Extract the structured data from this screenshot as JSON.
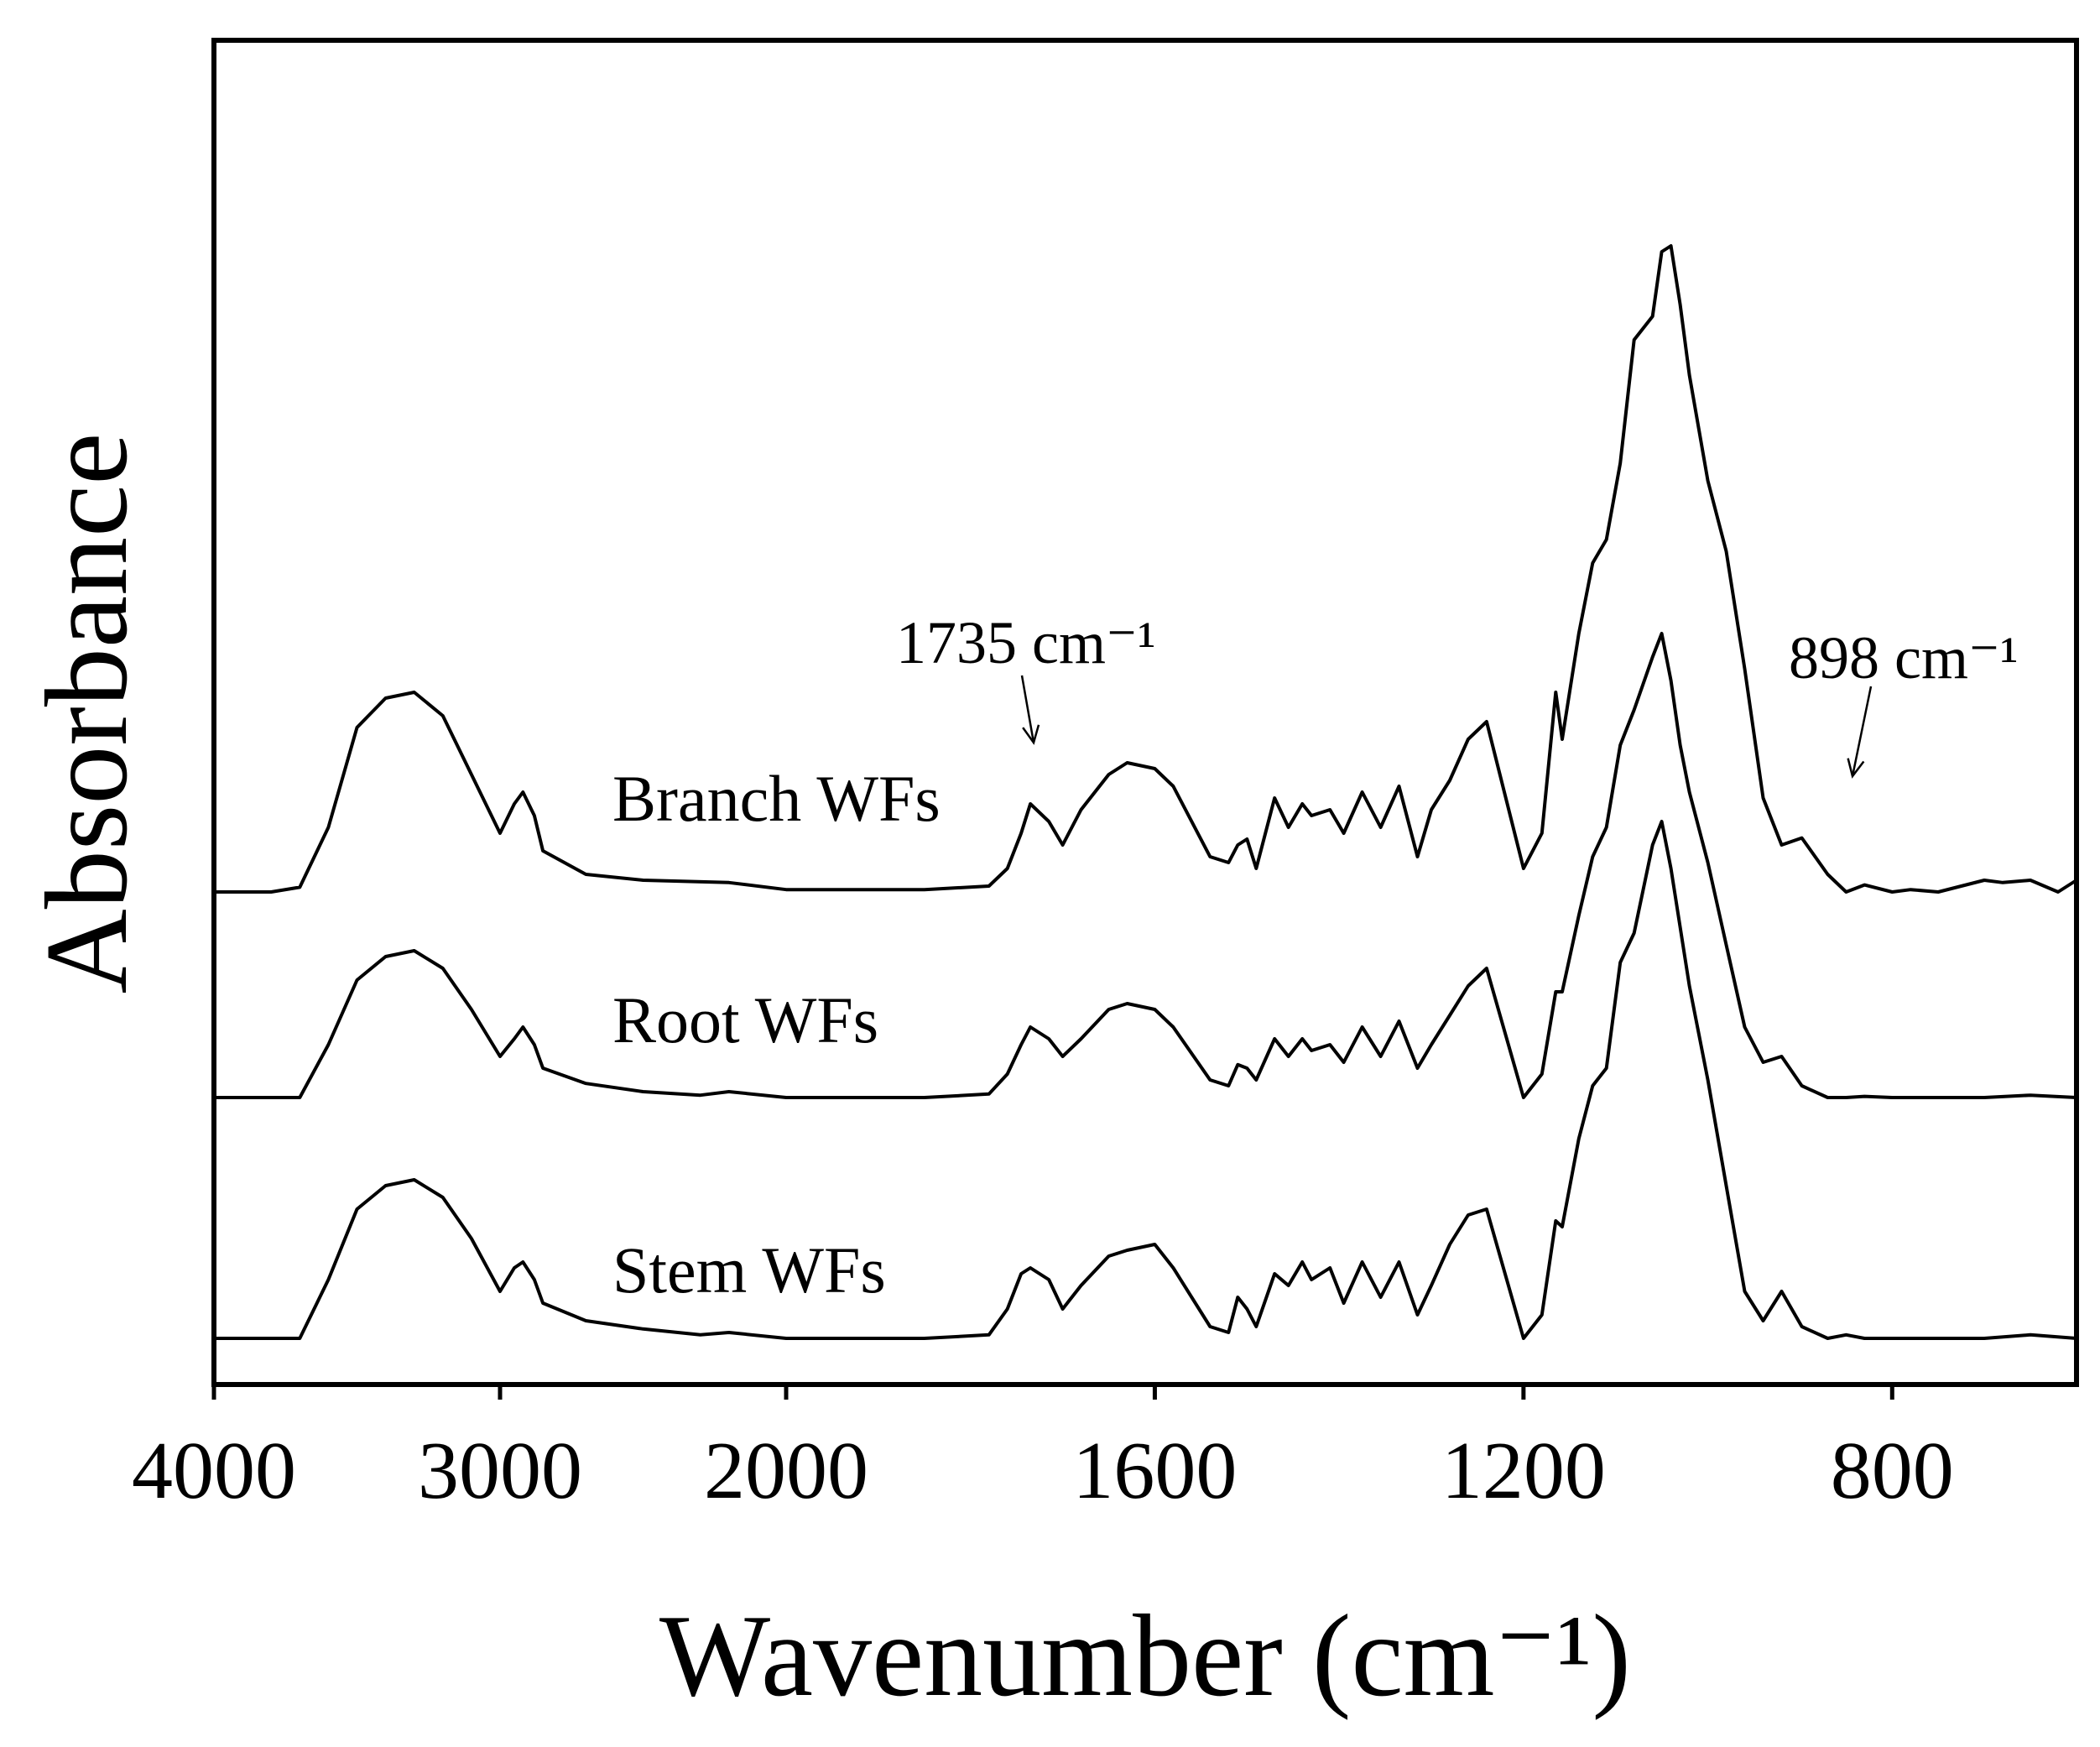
{
  "chart_data": {
    "type": "line",
    "xlabel": "Wavenumber (cm⁻¹)",
    "ylabel": "Absorbance",
    "x_axis": {
      "reversed": true,
      "broken_scale": true,
      "segments": [
        {
          "from": 4000,
          "to": 2000
        },
        {
          "from": 2000,
          "to": 600
        }
      ],
      "ticks": [
        4000,
        3000,
        2000,
        1600,
        1200,
        800
      ],
      "tick_labels": [
        "4000",
        "3000",
        "2000",
        "1600",
        "1200",
        "800"
      ]
    },
    "y_axis": {
      "ticks_shown": false
    },
    "ylim": [
      0,
      1.0
    ],
    "grid": false,
    "series": [
      {
        "name": "Branch WFs",
        "label": "Branch WFs",
        "offset": 0.38,
        "x": [
          4000,
          3800,
          3700,
          3600,
          3500,
          3400,
          3300,
          3200,
          3100,
          3000,
          2950,
          2920,
          2880,
          2850,
          2700,
          2500,
          2200,
          2000,
          1850,
          1780,
          1760,
          1745,
          1735,
          1715,
          1700,
          1680,
          1650,
          1630,
          1600,
          1580,
          1540,
          1520,
          1510,
          1500,
          1490,
          1470,
          1455,
          1440,
          1430,
          1410,
          1395,
          1375,
          1355,
          1335,
          1315,
          1300,
          1280,
          1260,
          1240,
          1200,
          1180,
          1165,
          1158,
          1140,
          1125,
          1110,
          1095,
          1080,
          1060,
          1050,
          1040,
          1030,
          1020,
          1000,
          980,
          960,
          940,
          920,
          898,
          870,
          850,
          830,
          800,
          780,
          750,
          700,
          680,
          650,
          620,
          600
        ],
        "y": [
          0,
          0.0,
          0.004,
          0.055,
          0.14,
          0.165,
          0.17,
          0.15,
          0.1,
          0.05,
          0.075,
          0.085,
          0.065,
          0.035,
          0.015,
          0.01,
          0.008,
          0.002,
          0.002,
          0.005,
          0.02,
          0.05,
          0.075,
          0.06,
          0.04,
          0.07,
          0.1,
          0.11,
          0.105,
          0.09,
          0.03,
          0.025,
          0.04,
          0.045,
          0.02,
          0.08,
          0.055,
          0.075,
          0.065,
          0.07,
          0.05,
          0.085,
          0.055,
          0.09,
          0.03,
          0.07,
          0.095,
          0.13,
          0.145,
          0.02,
          0.05,
          0.17,
          0.13,
          0.22,
          0.28,
          0.3,
          0.365,
          0.47,
          0.49,
          0.545,
          0.55,
          0.5,
          0.44,
          0.35,
          0.29,
          0.19,
          0.08,
          0.04,
          0.046,
          0.015,
          0.0,
          0.006,
          0.0,
          0.002,
          0.0,
          0.01,
          0.008,
          0.01,
          0.0,
          0.01
        ]
      },
      {
        "name": "Root WFs",
        "label": "Root WFs",
        "offset": 0.205,
        "x": [
          4000,
          3800,
          3700,
          3600,
          3500,
          3400,
          3300,
          3200,
          3100,
          3000,
          2950,
          2920,
          2880,
          2850,
          2700,
          2500,
          2300,
          2200,
          2000,
          1850,
          1780,
          1760,
          1745,
          1735,
          1715,
          1700,
          1680,
          1650,
          1630,
          1600,
          1580,
          1540,
          1520,
          1510,
          1500,
          1490,
          1470,
          1455,
          1440,
          1430,
          1410,
          1395,
          1375,
          1355,
          1335,
          1315,
          1300,
          1280,
          1260,
          1240,
          1200,
          1180,
          1165,
          1158,
          1140,
          1125,
          1110,
          1095,
          1080,
          1060,
          1050,
          1040,
          1030,
          1020,
          1000,
          980,
          960,
          940,
          920,
          898,
          870,
          850,
          830,
          800,
          700,
          650,
          600
        ],
        "y": [
          0,
          0.0,
          0.0,
          0.045,
          0.1,
          0.12,
          0.125,
          0.11,
          0.075,
          0.035,
          0.05,
          0.06,
          0.045,
          0.025,
          0.012,
          0.005,
          0.002,
          0.005,
          0.0,
          0.0,
          0.003,
          0.02,
          0.045,
          0.06,
          0.05,
          0.035,
          0.05,
          0.075,
          0.08,
          0.075,
          0.06,
          0.015,
          0.01,
          0.028,
          0.025,
          0.015,
          0.05,
          0.035,
          0.05,
          0.04,
          0.045,
          0.03,
          0.06,
          0.035,
          0.065,
          0.025,
          0.045,
          0.07,
          0.095,
          0.11,
          0.0,
          0.02,
          0.09,
          0.09,
          0.155,
          0.205,
          0.23,
          0.3,
          0.33,
          0.375,
          0.395,
          0.355,
          0.3,
          0.26,
          0.2,
          0.13,
          0.06,
          0.03,
          0.035,
          0.01,
          0.0,
          0.0,
          0.001,
          0.0,
          0.0,
          0.002,
          0.0
        ]
      },
      {
        "name": "Stem WFs",
        "label": "Stem WFs",
        "offset": 0.0,
        "x": [
          4000,
          3800,
          3700,
          3600,
          3500,
          3400,
          3300,
          3200,
          3100,
          3000,
          2950,
          2920,
          2880,
          2850,
          2700,
          2500,
          2300,
          2200,
          2000,
          1850,
          1780,
          1760,
          1745,
          1735,
          1715,
          1700,
          1680,
          1650,
          1630,
          1600,
          1580,
          1540,
          1520,
          1510,
          1500,
          1490,
          1470,
          1455,
          1440,
          1430,
          1410,
          1395,
          1375,
          1355,
          1335,
          1315,
          1300,
          1280,
          1260,
          1240,
          1200,
          1180,
          1165,
          1158,
          1140,
          1125,
          1110,
          1095,
          1080,
          1060,
          1050,
          1040,
          1030,
          1020,
          1000,
          980,
          960,
          940,
          920,
          898,
          870,
          850,
          830,
          800,
          700,
          650,
          600
        ],
        "y": [
          0,
          0.0,
          0.0,
          0.05,
          0.11,
          0.13,
          0.135,
          0.12,
          0.085,
          0.04,
          0.06,
          0.065,
          0.05,
          0.03,
          0.015,
          0.008,
          0.003,
          0.005,
          0.0,
          0.0,
          0.003,
          0.025,
          0.055,
          0.06,
          0.05,
          0.025,
          0.045,
          0.07,
          0.075,
          0.08,
          0.06,
          0.01,
          0.005,
          0.035,
          0.025,
          0.01,
          0.055,
          0.045,
          0.065,
          0.05,
          0.06,
          0.03,
          0.065,
          0.035,
          0.065,
          0.02,
          0.045,
          0.08,
          0.105,
          0.11,
          0.0,
          0.02,
          0.1,
          0.095,
          0.17,
          0.215,
          0.23,
          0.32,
          0.345,
          0.42,
          0.44,
          0.4,
          0.35,
          0.3,
          0.22,
          0.13,
          0.04,
          0.015,
          0.04,
          0.01,
          0.0,
          0.003,
          0.0,
          0.0,
          0.0,
          0.003,
          0.0
        ]
      }
    ],
    "annotations": [
      {
        "text": "1735 cm⁻¹",
        "x": 1735,
        "series": "Branch WFs",
        "arrow": true
      },
      {
        "text": "898 cm⁻¹",
        "x": 898,
        "series": "Branch WFs",
        "arrow": true
      }
    ]
  }
}
